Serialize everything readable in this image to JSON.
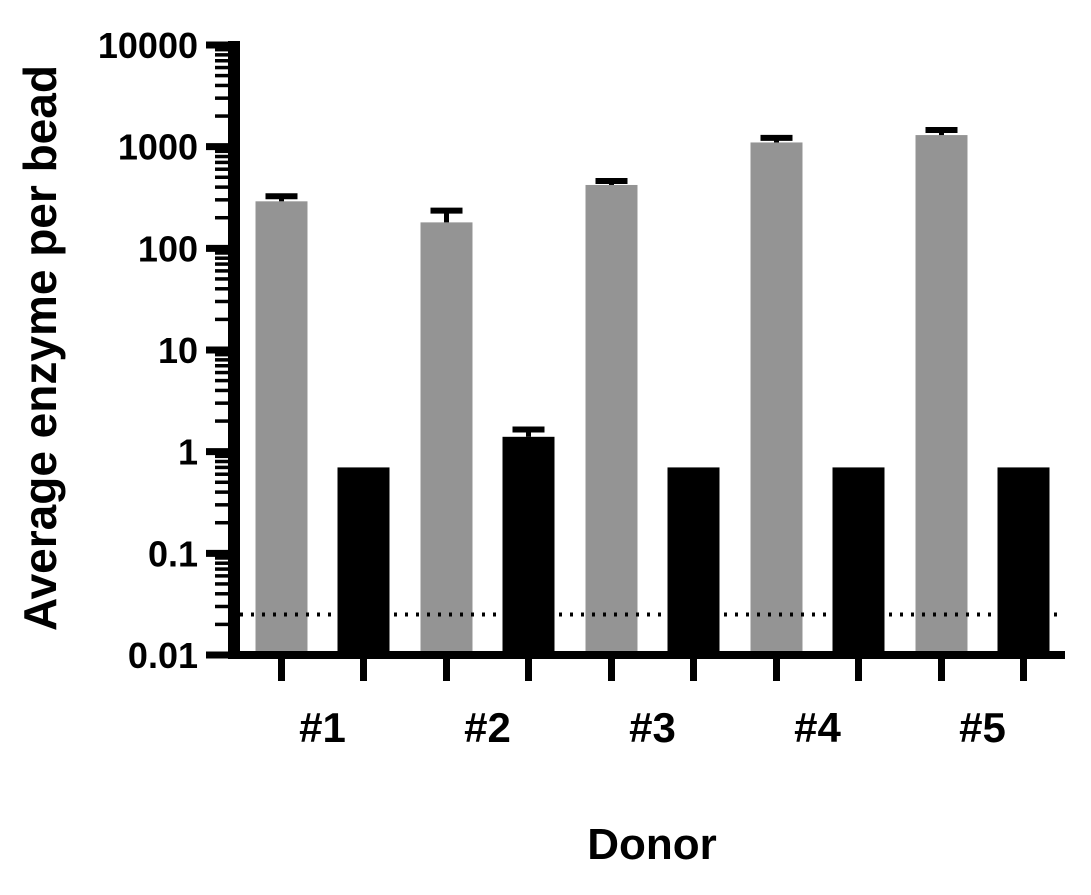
{
  "figure": {
    "background": "#ffffff",
    "text_color": "#000000"
  },
  "chart_data": {
    "type": "bar",
    "title": "",
    "xlabel": "Donor",
    "ylabel": "Average enzyme per bead",
    "yscale": "log",
    "ylim": [
      0.01,
      10000
    ],
    "yticks": [
      10000,
      1000,
      100,
      10,
      1,
      0.1,
      0.01
    ],
    "ytick_labels": [
      "10000",
      "1000",
      "100",
      "10",
      "1",
      "0.1",
      "0.01"
    ],
    "categories": [
      "#1",
      "#2",
      "#3",
      "#4",
      "#5"
    ],
    "series": [
      {
        "name": "gray-bars",
        "color": "#949494",
        "values": [
          290,
          180,
          420,
          1100,
          1300
        ],
        "errors": [
          35,
          55,
          40,
          120,
          160
        ]
      },
      {
        "name": "black-bars",
        "color": "#000000",
        "values": [
          0.7,
          1.4,
          0.7,
          0.7,
          0.7
        ],
        "errors": [
          0,
          0.25,
          0,
          0,
          0
        ]
      }
    ],
    "reference_line": {
      "value": 0.025,
      "style": "dotted",
      "color": "#000000"
    },
    "grid": false,
    "legend_visible": false
  }
}
